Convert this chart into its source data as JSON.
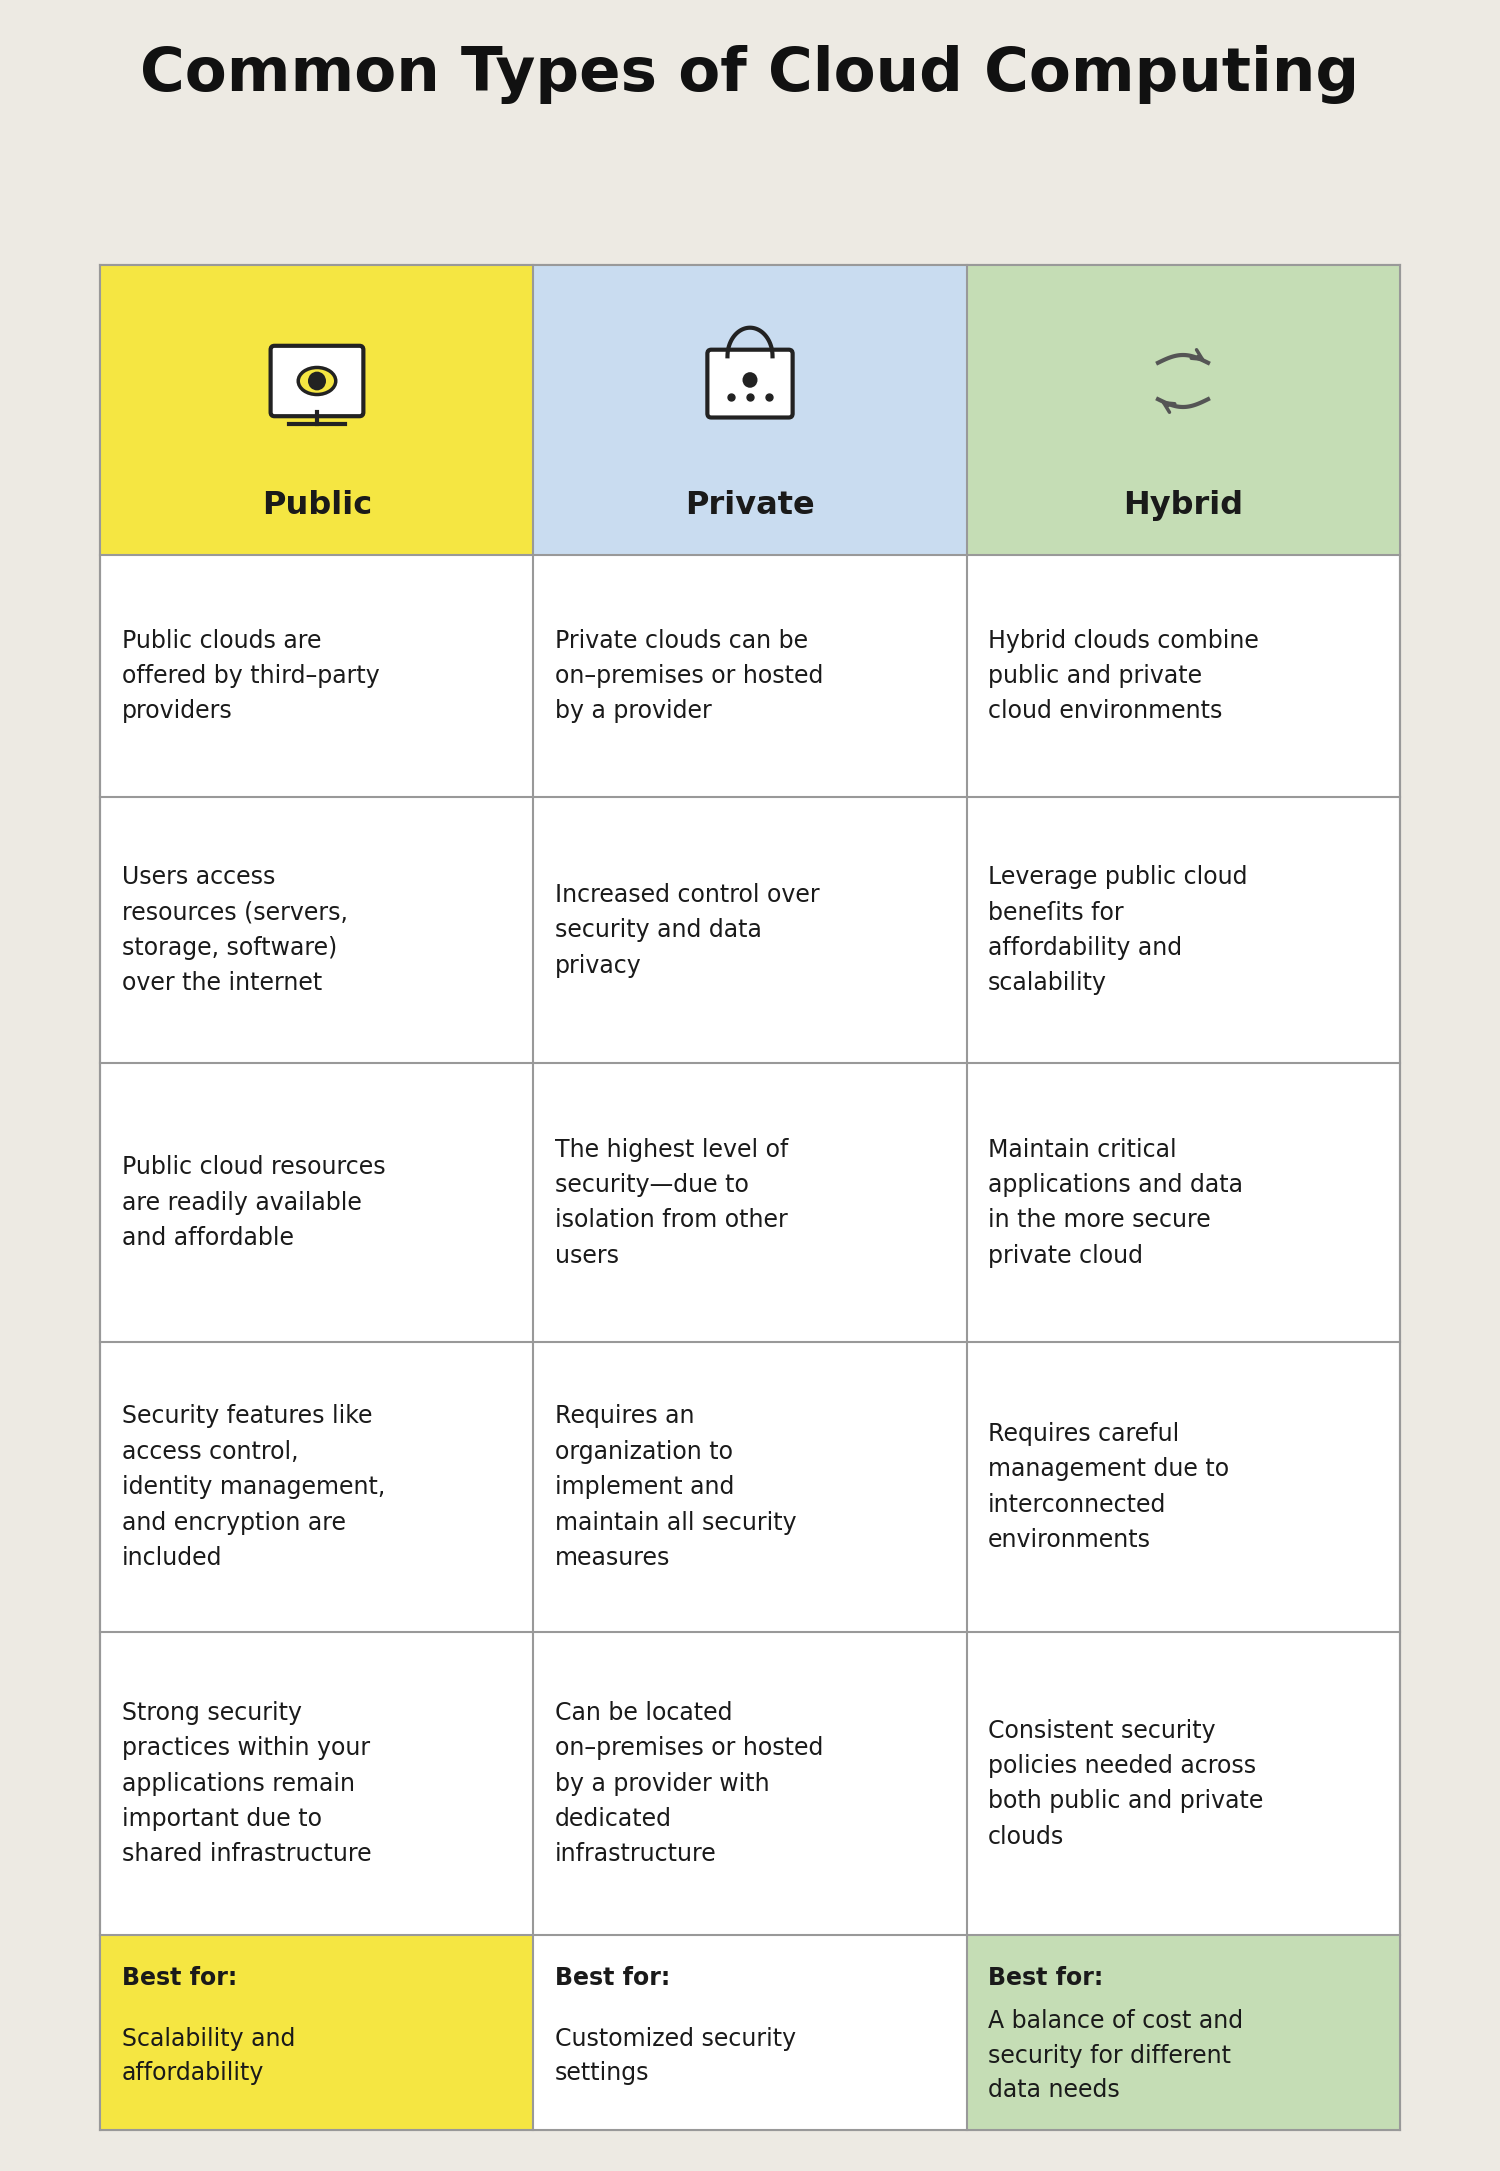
{
  "title": "Common Types of Cloud Computing",
  "background_color": "#EDEAE3",
  "border_color": "#999999",
  "title_fontsize": 44,
  "header_colors": [
    "#F5E642",
    "#C9DCF0",
    "#C5DDB5"
  ],
  "header_labels": [
    "Public",
    "Private",
    "Hybrid"
  ],
  "footer_colors": [
    "#F5E642",
    "#FFFFFF",
    "#C5DDB5"
  ],
  "rows": [
    [
      "Public clouds are\noffered by third–party\nproviders",
      "Private clouds can be\non–premises or hosted\nby a provider",
      "Hybrid clouds combine\npublic and private\ncloud environments"
    ],
    [
      "Users access\nresources (servers,\nstorage, software)\nover the internet",
      "Increased control over\nsecurity and data\nprivacy",
      "Leverage public cloud\nbeneſits for\naffordability and\nscalability"
    ],
    [
      "Public cloud resources\nare readily available\nand affordable",
      "The highest level of\nsecurity—due to\nisolation from other\nusers",
      "Maintain critical\napplications and data\nin the more secure\nprivate cloud"
    ],
    [
      "Security features like\naccess control,\nidentity management,\nand encryption are\nincluded",
      "Requires an\norganization to\nimplement and\nmaintain all security\nmeasures",
      "Requires careful\nmanagement due to\ninterconnected\nenvironments"
    ],
    [
      "Strong security\npractices within your\napplications remain\nimportant due to\nshared infrastructure",
      "Can be located\non–premises or hosted\nby a provider with\ndedicated\ninfrastructure",
      "Consistent security\npolicies needed across\nboth public and private\nclouds"
    ]
  ],
  "best_for_labels": [
    "Best for:",
    "Best for:",
    "Best for:"
  ],
  "best_for_text": [
    "Scalability and\naffordability",
    "Customized security\nsettings",
    "A balance of cost and\nsecurity for different\ndata needs"
  ],
  "cell_text_fontsize": 17,
  "header_fontsize": 23,
  "best_for_fontsize": 17
}
